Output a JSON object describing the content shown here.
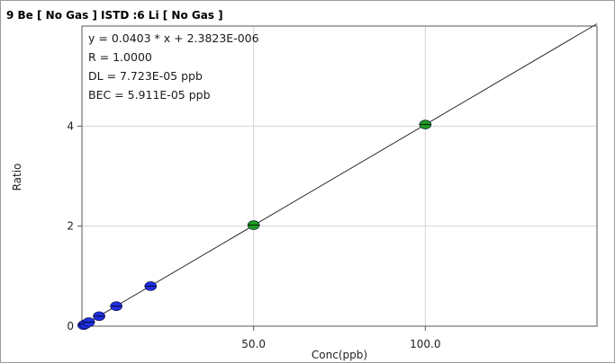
{
  "chart_data": {
    "type": "scatter",
    "title": "9  Be  [ No Gas ]  ISTD :6  Li  [ No Gas ]",
    "xlabel": "Conc(ppb)",
    "ylabel": "Ratio",
    "xlim": [
      0,
      150
    ],
    "ylim": [
      0,
      6
    ],
    "x_ticks": [
      50,
      100
    ],
    "x_tick_labels": [
      "50.0",
      "100.0"
    ],
    "y_ticks": [
      0,
      2,
      4
    ],
    "y_tick_labels": [
      "0",
      "2",
      "4"
    ],
    "grid": true,
    "annotations": [
      "y = 0.0403 * x   + 2.3823E-006",
      "R =  1.0000",
      "DL = 7.723E-05 ppb",
      "BEC = 5.911E-05 ppb"
    ],
    "fit_line": {
      "slope": 0.0403,
      "intercept": 2.3823e-06,
      "x_end": 150
    },
    "series": [
      {
        "color": "#1f2fe0",
        "x": [
          0.5,
          1,
          2,
          5,
          10,
          20
        ],
        "y": [
          0.02,
          0.04,
          0.08,
          0.2,
          0.4,
          0.8
        ]
      },
      {
        "color": "#1e9a1e",
        "x": [
          50,
          100
        ],
        "y": [
          2.02,
          4.03
        ]
      }
    ]
  }
}
